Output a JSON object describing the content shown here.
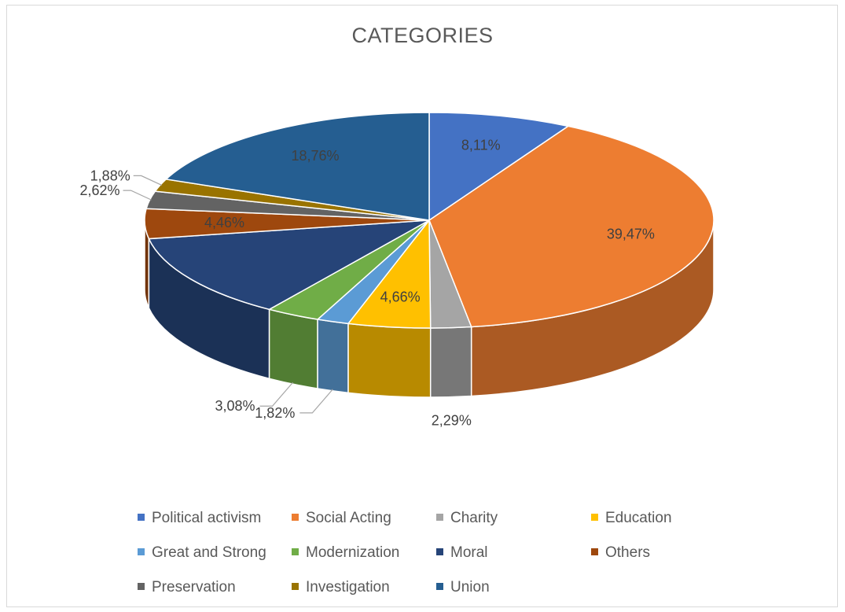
{
  "chart_data": {
    "type": "pie",
    "title": "CATEGORIES",
    "series": [
      {
        "name": "Political activism",
        "value": 8.11,
        "label": "8,11%",
        "color": "#4472c4"
      },
      {
        "name": "Social Acting",
        "value": 39.47,
        "label": "39,47%",
        "color": "#ed7d31"
      },
      {
        "name": "Charity",
        "value": 2.29,
        "label": "2,29%",
        "color": "#a5a5a5"
      },
      {
        "name": "Education",
        "value": 4.66,
        "label": "4,66%",
        "color": "#ffc000"
      },
      {
        "name": "Great and Strong",
        "value": 1.82,
        "label": "1,82%",
        "color": "#5b9bd5"
      },
      {
        "name": "Modernization",
        "value": 3.08,
        "label": "3,08%",
        "color": "#70ad47"
      },
      {
        "name": "Moral",
        "value": 12.74,
        "label": "",
        "color": "#264478"
      },
      {
        "name": "Others",
        "value": 4.46,
        "label": "4,46%",
        "color": "#9e480e"
      },
      {
        "name": "Preservation",
        "value": 2.62,
        "label": "2,62%",
        "color": "#636363"
      },
      {
        "name": "Investigation",
        "value": 1.88,
        "label": "1,88%",
        "color": "#997300"
      },
      {
        "name": "Union",
        "value": 18.76,
        "label": "18,76%",
        "color": "#255e91"
      }
    ],
    "legend": "bottom"
  }
}
